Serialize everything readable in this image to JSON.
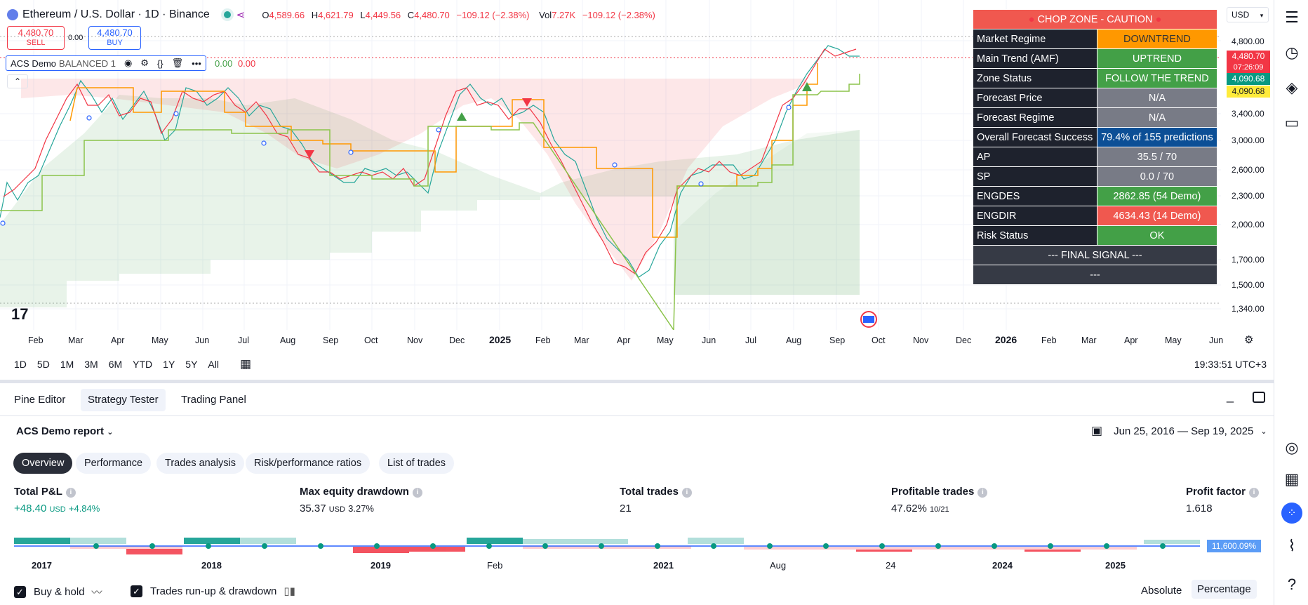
{
  "header": {
    "symbol": "Ethereum / U.S. Dollar · 1D · Binance",
    "open_label": "O",
    "open": "4,589.66",
    "high_label": "H",
    "high": "4,621.79",
    "low_label": "L",
    "low": "4,449.56",
    "close_label": "C",
    "close": "4,480.70",
    "change": "−109.12 (−2.38%)",
    "vol_label": "Vol",
    "vol": "7.27K",
    "vol_change": "−109.12 (−2.38%)"
  },
  "trade": {
    "sell_price": "4,480.70",
    "sell_label": "SELL",
    "spread": "0.00",
    "buy_price": "4,480.70",
    "buy_label": "BUY"
  },
  "indicator_legend": {
    "name": "ACS Demo",
    "setting": "BALANCED 1",
    "v1": "0.00",
    "v2": "0.00"
  },
  "currency": "USD",
  "table": {
    "title": "CHOP ZONE - CAUTION",
    "rows": [
      {
        "label": "Market Regime",
        "value": "DOWNTREND"
      },
      {
        "label": "Main Trend (AMF)",
        "value": "UPTREND"
      },
      {
        "label": "Zone Status",
        "value": "FOLLOW THE TREND"
      },
      {
        "label": "Forecast Price",
        "value": "N/A"
      },
      {
        "label": "Forecast Regime",
        "value": "N/A"
      },
      {
        "label": "Overall Forecast Success",
        "value": "79.4% of 155 predictions"
      },
      {
        "label": "AP",
        "value": "35.5 / 70"
      },
      {
        "label": "SP",
        "value": "0.0 / 70"
      },
      {
        "label": "ENGDES",
        "value": "2862.85 (54 Demo)"
      },
      {
        "label": "ENGDIR",
        "value": "4634.43 (14 Demo)"
      },
      {
        "label": "Risk Status",
        "value": "OK"
      }
    ],
    "final_signal": "--- FINAL SIGNAL ---",
    "final_value": "---"
  },
  "price_axis": {
    "ticks": [
      "4,800.00",
      "3,400.00",
      "3,000.00",
      "2,600.00",
      "2,300.00",
      "2,000.00",
      "1,700.00",
      "1,500.00",
      "1,340.00"
    ],
    "last_price": "4,480.70",
    "countdown": "07:26:09",
    "badge2": "4,090.68",
    "badge3": "4,090.68"
  },
  "time_axis": [
    "Feb",
    "Mar",
    "Apr",
    "May",
    "Jun",
    "Jul",
    "Aug",
    "Sep",
    "Oct",
    "Nov",
    "Dec",
    "2025",
    "Feb",
    "Mar",
    "Apr",
    "May",
    "Jun",
    "Jul",
    "Aug",
    "Sep",
    "Oct",
    "Nov",
    "Dec",
    "2026",
    "Feb",
    "Mar",
    "Apr",
    "May",
    "Jun"
  ],
  "timeframes": [
    "1D",
    "5D",
    "1M",
    "3M",
    "6M",
    "YTD",
    "1Y",
    "5Y",
    "All"
  ],
  "clock": "19:33:51 UTC+3",
  "panel": {
    "tabs": [
      "Pine Editor",
      "Strategy Tester",
      "Trading Panel"
    ],
    "report_title": "ACS Demo report",
    "date_range": "Jun 25, 2016 — Sep 19, 2025",
    "subtabs": [
      "Overview",
      "Performance",
      "Trades analysis",
      "Risk/performance ratios",
      "List of trades"
    ],
    "metrics": [
      {
        "label": "Total P&L",
        "value": "+48.40",
        "unit": "USD",
        "extra": "+4.84%"
      },
      {
        "label": "Max equity drawdown",
        "value": "35.37",
        "unit": "USD",
        "extra": "3.27%"
      },
      {
        "label": "Total trades",
        "value": "21",
        "unit": "",
        "extra": ""
      },
      {
        "label": "Profitable trades",
        "value": "47.62%",
        "unit": "10/21",
        "extra": ""
      },
      {
        "label": "Profit factor",
        "value": "1.618",
        "unit": "",
        "extra": ""
      }
    ],
    "equity_badge": "11,600.09%",
    "years": [
      "2017",
      "2018",
      "2019",
      "Feb",
      "2021",
      "Aug",
      "24",
      "2024",
      "2025"
    ],
    "buy_hold": "Buy & hold",
    "runup": "Trades run-up & drawdown",
    "absolute": "Absolute",
    "percentage": "Percentage"
  }
}
